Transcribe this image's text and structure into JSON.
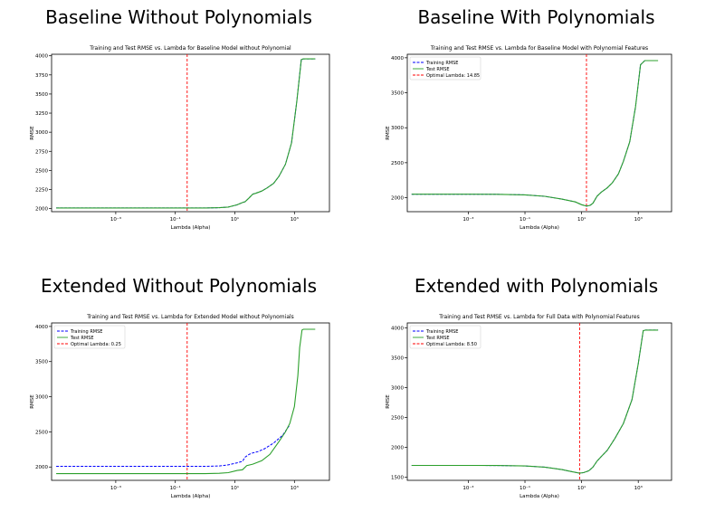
{
  "headings": [
    "Baseline Without Polynomials",
    "Baseline With Polynomials",
    "Extended Without Polynomials",
    "Extended with Polynomials"
  ],
  "chart_data": [
    {
      "type": "line",
      "title": "Training and Test RMSE vs. Lambda for Baseline Model without Polynomial",
      "xlabel": "Lambda (Alpha)",
      "ylabel": "RMSE",
      "xscale": "log",
      "xlim": [
        7e-06,
        15000
      ],
      "ylim": [
        1960,
        4020
      ],
      "yticks": [
        2000,
        2250,
        2500,
        2750,
        3000,
        3250,
        3500,
        3750,
        4000
      ],
      "xticks": [
        0.001,
        0.1,
        10,
        1000
      ],
      "xtick_labels": [
        "10⁻³",
        "10⁻¹",
        "10¹",
        "10³"
      ],
      "legend": "none",
      "grid": false,
      "colors": {
        "train": "#0000ff",
        "test": "#2ca02c",
        "optimal": "#ff0000"
      },
      "series": [
        {
          "x": [
            1e-05,
            0.001,
            0.1,
            1,
            3,
            6,
            12,
            18,
            22,
            30,
            40,
            50,
            80,
            120,
            200,
            300,
            500,
            800,
            1200,
            1700,
            2000,
            5000
          ],
          "values": [
            2008,
            2008,
            2008,
            2009,
            2012,
            2020,
            2050,
            2080,
            2090,
            2140,
            2190,
            2200,
            2230,
            2270,
            2330,
            2420,
            2580,
            2860,
            3400,
            3950,
            3960,
            3960
          ]
        },
        {
          "x": [
            1e-05,
            0.001,
            0.1,
            1,
            3,
            6,
            12,
            18,
            22,
            30,
            40,
            50,
            80,
            120,
            200,
            300,
            500,
            800,
            1200,
            1700,
            2000,
            5000
          ],
          "values": [
            2008,
            2008,
            2008,
            2009,
            2012,
            2020,
            2050,
            2080,
            2090,
            2140,
            2190,
            2200,
            2230,
            2270,
            2330,
            2420,
            2580,
            2860,
            3400,
            3950,
            3960,
            3960
          ]
        }
      ],
      "optimal_lambda": 0.25
    },
    {
      "type": "line",
      "title": "Training and Test RMSE vs. Lambda for Baseline Model with Polynomial Features",
      "xlabel": "Lambda (Alpha)",
      "ylabel": "RMSE",
      "xscale": "log",
      "xlim": [
        7e-06,
        15000
      ],
      "ylim": [
        1800,
        4050
      ],
      "yticks": [
        2000,
        2500,
        3000,
        3500,
        4000
      ],
      "xticks": [
        0.001,
        0.1,
        10,
        1000
      ],
      "xtick_labels": [
        "10⁻³",
        "10⁻¹",
        "10¹",
        "10³"
      ],
      "legend": "top-left",
      "legend_labels": [
        "Training RMSE",
        "Test RMSE",
        "Optimal Lambda: 14.85"
      ],
      "grid": false,
      "colors": {
        "train": "#0000ff",
        "test": "#2ca02c",
        "optimal": "#ff0000"
      },
      "series": [
        {
          "x": [
            1e-05,
            0.001,
            0.01,
            0.1,
            0.5,
            2,
            6,
            10,
            15,
            20,
            25,
            35,
            50,
            80,
            120,
            200,
            300,
            500,
            800,
            1200,
            1700,
            2000,
            5000
          ],
          "values": [
            2050,
            2050,
            2048,
            2040,
            2020,
            1980,
            1940,
            1900,
            1880,
            1890,
            1920,
            2020,
            2080,
            2140,
            2210,
            2340,
            2520,
            2800,
            3300,
            3900,
            3960,
            3960,
            3960
          ]
        },
        {
          "x": [
            1e-05,
            0.001,
            0.01,
            0.1,
            0.5,
            2,
            6,
            10,
            15,
            20,
            25,
            35,
            50,
            80,
            120,
            200,
            300,
            500,
            800,
            1200,
            1700,
            2000,
            5000
          ],
          "values": [
            2050,
            2050,
            2048,
            2040,
            2020,
            1980,
            1940,
            1900,
            1880,
            1890,
            1920,
            2020,
            2080,
            2140,
            2210,
            2340,
            2520,
            2800,
            3300,
            3900,
            3960,
            3960,
            3960
          ]
        }
      ],
      "optimal_lambda": 14.85
    },
    {
      "type": "line",
      "title": "Training and Test RMSE vs. Lambda for Extended Model without Polynomials",
      "xlabel": "Lambda (Alpha)",
      "ylabel": "RMSE",
      "xscale": "log",
      "xlim": [
        7e-06,
        15000
      ],
      "ylim": [
        1810,
        4050
      ],
      "yticks": [
        2000,
        2500,
        3000,
        3500,
        4000
      ],
      "xticks": [
        0.001,
        0.1,
        10,
        1000
      ],
      "xtick_labels": [
        "10⁻³",
        "10⁻¹",
        "10¹",
        "10³"
      ],
      "legend": "top-left",
      "legend_labels": [
        "Training RMSE",
        "Test RMSE",
        "Optimal Lambda: 0.25"
      ],
      "grid": false,
      "colors": {
        "train": "#0000ff",
        "test": "#2ca02c",
        "optimal": "#ff0000"
      },
      "series": [
        {
          "x": [
            1e-05,
            0.001,
            0.1,
            1,
            3,
            6,
            12,
            18,
            22,
            30,
            40,
            60,
            100,
            200,
            400,
            700
          ],
          "values": [
            2010,
            2010,
            2010,
            2010,
            2015,
            2030,
            2060,
            2080,
            2140,
            2180,
            2200,
            2220,
            2260,
            2340,
            2450,
            2600
          ]
        },
        {
          "x": [
            1e-05,
            0.001,
            0.1,
            1,
            3,
            6,
            12,
            18,
            25,
            40,
            80,
            150,
            300,
            500,
            700,
            1000,
            1300,
            1500,
            1800,
            2000,
            5000
          ],
          "values": [
            1905,
            1905,
            1905,
            1905,
            1910,
            1920,
            1950,
            1960,
            2020,
            2040,
            2090,
            2180,
            2360,
            2500,
            2620,
            2860,
            3300,
            3700,
            3950,
            3960,
            3960
          ]
        }
      ],
      "optimal_lambda": 0.25
    },
    {
      "type": "line",
      "title": "Training and Test RMSE vs. Lambda for Full Data with Polynomial Features",
      "xlabel": "Lambda (Alpha)",
      "ylabel": "RMSE",
      "xscale": "log",
      "xlim": [
        7e-06,
        15000
      ],
      "ylim": [
        1450,
        4080
      ],
      "yticks": [
        1500,
        2000,
        2500,
        3000,
        3500,
        4000
      ],
      "xticks": [
        0.001,
        0.1,
        10,
        1000
      ],
      "xtick_labels": [
        "10⁻³",
        "10⁻¹",
        "10¹",
        "10³"
      ],
      "legend": "top-left",
      "legend_labels": [
        "Training RMSE",
        "Test RMSE",
        "Optimal Lambda: 8.50"
      ],
      "grid": false,
      "colors": {
        "train": "#0000ff",
        "test": "#2ca02c",
        "optimal": "#ff0000"
      },
      "series": [
        {
          "x": [
            1e-05,
            0.001,
            0.01,
            0.1,
            0.5,
            2,
            5,
            8.5,
            12,
            18,
            25,
            35,
            50,
            80,
            150,
            300,
            600,
            1000,
            1500,
            1800,
            2000,
            5000
          ],
          "values": [
            1700,
            1700,
            1698,
            1690,
            1670,
            1630,
            1590,
            1570,
            1580,
            1610,
            1670,
            1770,
            1850,
            1950,
            2150,
            2400,
            2800,
            3400,
            3950,
            3960,
            3960,
            3960
          ]
        },
        {
          "x": [
            1e-05,
            0.001,
            0.01,
            0.1,
            0.5,
            2,
            5,
            8.5,
            12,
            18,
            25,
            35,
            50,
            80,
            150,
            300,
            600,
            1000,
            1500,
            1800,
            2000,
            5000
          ],
          "values": [
            1700,
            1700,
            1698,
            1690,
            1670,
            1630,
            1590,
            1570,
            1580,
            1610,
            1670,
            1770,
            1850,
            1950,
            2150,
            2400,
            2800,
            3400,
            3950,
            3960,
            3960,
            3960
          ]
        }
      ],
      "optimal_lambda": 8.5
    }
  ]
}
